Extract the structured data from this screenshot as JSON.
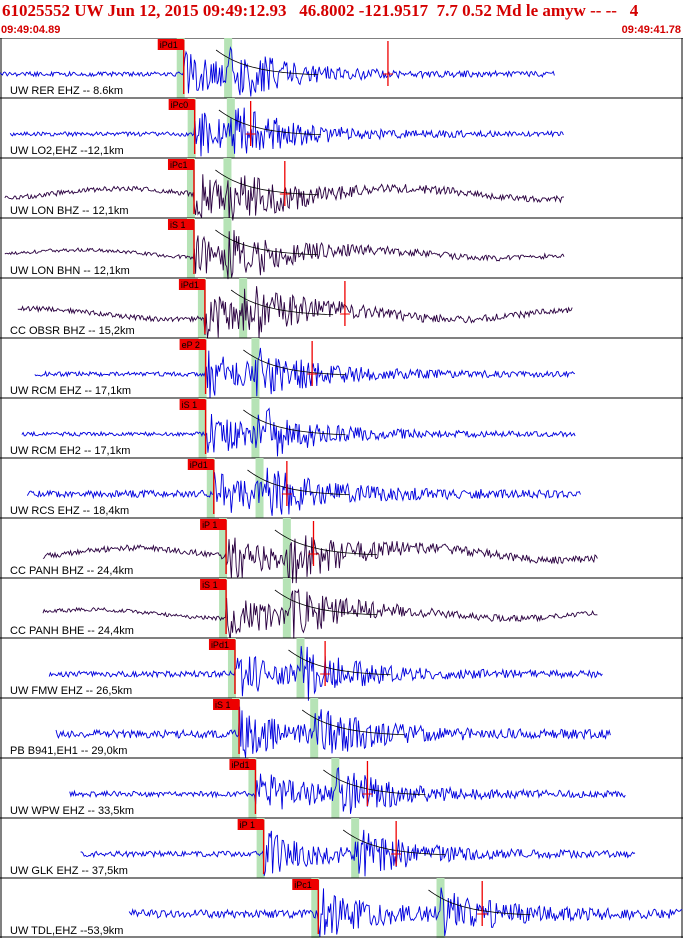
{
  "header": {
    "title": "61025552 UW Jun 12, 2015 09:49:12.93   46.8002 -121.9517  7.7 0.52 Md le amyw -- --   4",
    "time_start": "09:49:04.89",
    "time_end": "09:49:41.78"
  },
  "colors": {
    "header_red": "#d40000",
    "trace_blue": "#0000dd",
    "trace_dark": "#2a0040",
    "pick_red": "#ee0000",
    "window_green": "#b6e3b6"
  },
  "chart_data": {
    "type": "line",
    "title": "61025552 UW Jun 12, 2015 09:49:12.93   46.8002 -121.9517  7.7 0.52 Md le amyw -- --   4",
    "x_range": [
      "09:49:04.89",
      "09:49:41.78"
    ],
    "series": [
      {
        "name": "UW RER EHZ -- 8.6km",
        "color": "#0000dd",
        "trace_start": 0.0,
        "trace_end": 0.813,
        "amplitude": 0.12,
        "p_time": 0.269,
        "s_time": 0.334,
        "pick_label": "iPd1",
        "duration_mark": 0.568
      },
      {
        "name": "UW LO2,EHZ --12,1km",
        "color": "#0000dd",
        "trace_start": 0.015,
        "trace_end": 0.826,
        "amplitude": 0.12,
        "p_time": 0.285,
        "s_time": 0.338,
        "pick_label": "iPc0",
        "duration_mark": 0.367
      },
      {
        "name": "UW LON BHZ -- 12,1km",
        "color": "#2a0040",
        "trace_start": 0.007,
        "trace_end": 0.826,
        "amplitude": 0.16,
        "p_time": 0.284,
        "s_time": 0.333,
        "pick_label": "iPc1",
        "duration_mark": 0.417
      },
      {
        "name": "UW LON BHN -- 12,1km",
        "color": "#2a0040",
        "trace_start": 0.007,
        "trace_end": 0.826,
        "amplitude": 0.08,
        "p_time": 0.284,
        "s_time": 0.333,
        "pick_label": "iS 1",
        "duration_mark": null
      },
      {
        "name": "CC OBSR BHZ -- 15,2km",
        "color": "#2a0040",
        "trace_start": 0.026,
        "trace_end": 0.839,
        "amplitude": 0.16,
        "p_time": 0.3,
        "s_time": 0.356,
        "pick_label": "iPd1",
        "duration_mark": 0.505
      },
      {
        "name": "UW RCM EHZ -- 17,1km",
        "color": "#0000dd",
        "trace_start": 0.051,
        "trace_end": 0.843,
        "amplitude": 0.14,
        "p_time": 0.301,
        "s_time": 0.374,
        "pick_label": "eP 2",
        "duration_mark": 0.457
      },
      {
        "name": "UW RCM EH2 -- 17,1km",
        "color": "#0000dd",
        "trace_start": 0.032,
        "trace_end": 0.842,
        "amplitude": 0.1,
        "p_time": 0.301,
        "s_time": 0.374,
        "pick_label": "iS 1",
        "duration_mark": null
      },
      {
        "name": "UW RCS EHZ -- 18,4km",
        "color": "#0000dd",
        "trace_start": 0.04,
        "trace_end": 0.85,
        "amplitude": 0.3,
        "p_time": 0.313,
        "s_time": 0.38,
        "pick_label": "iPd1",
        "duration_mark": 0.42
      },
      {
        "name": "CC PANH BHZ -- 24,4km",
        "color": "#2a0040",
        "trace_start": 0.063,
        "trace_end": 0.876,
        "amplitude": 0.22,
        "p_time": 0.331,
        "s_time": 0.42,
        "pick_label": "iP 1",
        "duration_mark": 0.459
      },
      {
        "name": "CC PANH BHE -- 24,4km",
        "color": "#2a0040",
        "trace_start": 0.063,
        "trace_end": 0.876,
        "amplitude": 0.1,
        "p_time": 0.331,
        "s_time": 0.42,
        "pick_label": "iS 1",
        "duration_mark": null
      },
      {
        "name": "UW FMW EHZ -- 26,5km",
        "color": "#0000dd",
        "trace_start": 0.072,
        "trace_end": 0.883,
        "amplitude": 0.22,
        "p_time": 0.344,
        "s_time": 0.44,
        "pick_label": "iPd1",
        "duration_mark": 0.476
      },
      {
        "name": "PB B941,EH1 -- 29,0km",
        "color": "#0000dd",
        "trace_start": 0.082,
        "trace_end": 0.894,
        "amplitude": 0.35,
        "p_time": 0.35,
        "s_time": 0.46,
        "pick_label": "iS 1",
        "duration_mark": null
      },
      {
        "name": "UW WPW EHZ -- 33,5km",
        "color": "#0000dd",
        "trace_start": 0.102,
        "trace_end": 0.916,
        "amplitude": 0.2,
        "p_time": 0.374,
        "s_time": 0.491,
        "pick_label": "iPd1",
        "duration_mark": 0.538
      },
      {
        "name": "UW GLK EHZ -- 37,5km",
        "color": "#0000dd",
        "trace_start": 0.118,
        "trace_end": 0.931,
        "amplitude": 0.2,
        "p_time": 0.386,
        "s_time": 0.52,
        "pick_label": "iP 1",
        "duration_mark": 0.58
      },
      {
        "name": "UW TDL,EHZ --53,9km",
        "color": "#0000dd",
        "trace_start": 0.189,
        "trace_end": 1.0,
        "amplitude": 0.38,
        "p_time": 0.466,
        "s_time": 0.645,
        "pick_label": "iPc1",
        "duration_mark": 0.706
      }
    ]
  }
}
